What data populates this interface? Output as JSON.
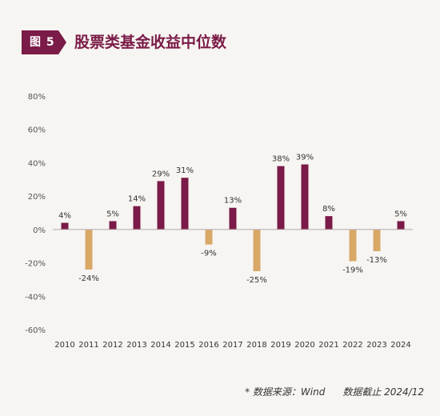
{
  "header": {
    "figure_label": "图 5",
    "title": "股票类基金收益中位数"
  },
  "footer": {
    "source": "* 数据来源：Wind",
    "cutoff": "数据截止 2024/12"
  },
  "colors": {
    "positive": "#7b1b47",
    "negative": "#d9a866",
    "badge": "#7b1b47"
  },
  "chart_data": {
    "type": "bar",
    "title": "股票类基金收益中位数",
    "categories": [
      "2010",
      "2011",
      "2012",
      "2013",
      "2014",
      "2015",
      "2016",
      "2017",
      "2018",
      "2019",
      "2020",
      "2021",
      "2022",
      "2023",
      "2024"
    ],
    "values": [
      4,
      -24,
      5,
      14,
      29,
      31,
      -9,
      13,
      -25,
      38,
      39,
      8,
      -19,
      -13,
      5
    ],
    "data_labels": [
      "4%",
      "-24%",
      "5%",
      "14%",
      "29%",
      "31%",
      "-9%",
      "13%",
      "-25%",
      "38%",
      "39%",
      "8%",
      "-19%",
      "-13%",
      "5%"
    ],
    "ylim": [
      -60,
      80
    ],
    "yticks": [
      80,
      60,
      40,
      20,
      0,
      -20,
      -40,
      -60
    ],
    "ytick_labels": [
      "80%",
      "60%",
      "40%",
      "20%",
      "0%",
      "-20%",
      "-40%",
      "-60%"
    ],
    "xlabel": "",
    "ylabel": "",
    "grid": false,
    "legend": "none"
  }
}
